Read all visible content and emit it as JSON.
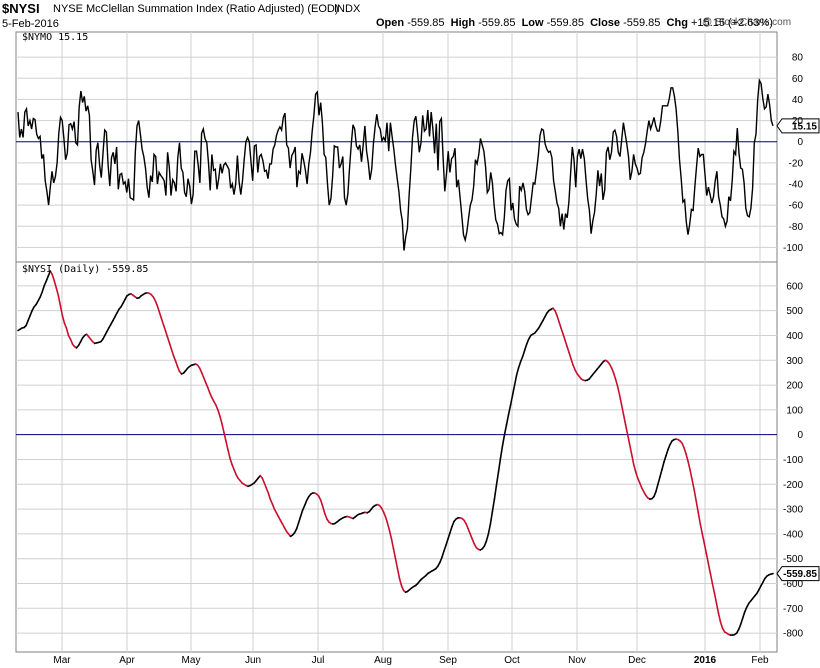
{
  "header": {
    "symbol": "$NYSI",
    "name": "NYSE McClellan Summation Index (Ratio Adjusted) (EOD)",
    "exchange": "INDX",
    "date": "5-Feb-2016",
    "watermark": "@ StockCharts.com",
    "quote": {
      "open_label": "Open",
      "open": "-559.85",
      "high_label": "High",
      "high": "-559.85",
      "low_label": "Low",
      "low": "-559.85",
      "close_label": "Close",
      "close": "-559.85",
      "chg_label": "Chg",
      "chg": "+15.15 (+2.63%)"
    }
  },
  "colors": {
    "line": "#000000",
    "down": "#c8102e",
    "zero": "#000080",
    "grid": "#d0d0d0",
    "border": "#808080"
  },
  "chart_data": [
    {
      "type": "line",
      "panel": "top",
      "label": "$NYMO 15.15",
      "last_value_tag": "15.15",
      "x_axis": "trading days, Feb 2016 end",
      "ylim": [
        -110,
        100
      ],
      "y_ticks": [
        80,
        60,
        40,
        20,
        0,
        -20,
        -40,
        -60,
        -80,
        -100
      ],
      "zero_line": true,
      "values": [
        28,
        4,
        12,
        4,
        28,
        31,
        15,
        20,
        12,
        22,
        21,
        7,
        3,
        5,
        -16,
        -12,
        -37,
        -47,
        -60,
        -43,
        -28,
        -39,
        -33,
        -20,
        8,
        23,
        20,
        3,
        -17,
        -11,
        16,
        17,
        12,
        19,
        -1,
        -3,
        33,
        48,
        37,
        43,
        29,
        34,
        25,
        -17,
        -28,
        -41,
        -8,
        -1,
        -22,
        -34,
        -11,
        11,
        9,
        -22,
        -42,
        -15,
        -10,
        -21,
        -5,
        -45,
        -31,
        -30,
        -40,
        -38,
        -48,
        -35,
        -53,
        -54,
        -55,
        -10,
        15,
        20,
        7,
        -7,
        -14,
        -25,
        -43,
        -53,
        -32,
        -38,
        -12,
        -14,
        -40,
        -29,
        -32,
        -34,
        -37,
        -51,
        -10,
        -24,
        -51,
        -36,
        -39,
        -47,
        -15,
        -1,
        -25,
        -29,
        -48,
        -52,
        -35,
        -42,
        -59,
        -50,
        -9,
        -9,
        -22,
        -39,
        8,
        12,
        3,
        -1,
        -20,
        -46,
        -12,
        -27,
        -26,
        -45,
        -35,
        -21,
        -30,
        -22,
        -20,
        -23,
        -26,
        -44,
        -40,
        -50,
        -40,
        -13,
        -38,
        -50,
        -37,
        -17,
        0,
        4,
        0,
        -19,
        -37,
        -4,
        -3,
        -29,
        -14,
        -12,
        -18,
        -28,
        -27,
        -35,
        -21,
        -21,
        -7,
        -3,
        6,
        11,
        14,
        11,
        23,
        27,
        -3,
        -6,
        -25,
        -13,
        -10,
        -5,
        -43,
        -28,
        -30,
        -11,
        -18,
        -27,
        -40,
        -21,
        -10,
        10,
        25,
        45,
        47,
        25,
        37,
        18,
        -12,
        -15,
        -40,
        -60,
        -54,
        -33,
        -4,
        -5,
        -5,
        -25,
        -21,
        -14,
        -53,
        -60,
        -49,
        -24,
        -2,
        16,
        12,
        -4,
        -7,
        -3,
        -19,
        -3,
        15,
        -9,
        -20,
        -36,
        -26,
        -2,
        14,
        26,
        15,
        12,
        1,
        4,
        1,
        18,
        -9,
        18,
        5,
        -7,
        -22,
        -35,
        -47,
        -65,
        -75,
        -103,
        -90,
        -82,
        -51,
        -26,
        4,
        20,
        24,
        8,
        -10,
        -1,
        25,
        10,
        12,
        30,
        5,
        28,
        12,
        -11,
        17,
        -27,
        19,
        22,
        -15,
        -47,
        -30,
        -9,
        -29,
        -16,
        -14,
        -6,
        -43,
        -36,
        -53,
        -70,
        -88,
        -93,
        -85,
        -72,
        -60,
        -55,
        -42,
        -17,
        -21,
        -12,
        3,
        -3,
        -9,
        -24,
        -48,
        -45,
        -29,
        -39,
        -60,
        -74,
        -78,
        -87,
        -86,
        -88,
        -72,
        -46,
        -37,
        -35,
        -65,
        -58,
        -73,
        -78,
        -80,
        -42,
        -46,
        -39,
        -47,
        -64,
        -69,
        -67,
        -53,
        -39,
        -40,
        -27,
        -13,
        6,
        12,
        11,
        -2,
        -7,
        -10,
        -9,
        -15,
        -37,
        -47,
        -58,
        -63,
        -80,
        -68,
        -83,
        -68,
        -72,
        -57,
        -30,
        -5,
        -17,
        -43,
        -14,
        -7,
        -16,
        -7,
        -16,
        -36,
        -54,
        -65,
        -87,
        -75,
        -67,
        -50,
        -27,
        -42,
        -30,
        -55,
        -46,
        -10,
        -5,
        -17,
        -10,
        9,
        11,
        5,
        -10,
        -14,
        2,
        18,
        8,
        -2,
        -14,
        -36,
        -28,
        -12,
        -21,
        -25,
        -31,
        -30,
        -15,
        -10,
        -2,
        10,
        20,
        12,
        17,
        23,
        15,
        10,
        10,
        20,
        34,
        34,
        34,
        34,
        41,
        51,
        51,
        43,
        31,
        10,
        -17,
        -35,
        -57,
        -55,
        -76,
        -88,
        -78,
        -64,
        -65,
        -43,
        -24,
        -6,
        -14,
        -12,
        -12,
        -31,
        -51,
        -43,
        -50,
        -58,
        -52,
        -37,
        -28,
        -52,
        -60,
        -71,
        -73,
        -80,
        -75,
        -52,
        -56,
        -37,
        -9,
        -12,
        13,
        -11,
        -25,
        -26,
        -39,
        -63,
        -70,
        -71,
        -63,
        -44,
        -1,
        7,
        40,
        58,
        55,
        41,
        31,
        33,
        45,
        35,
        20,
        15
      ],
      "values_note_omitted": true
    },
    {
      "type": "line",
      "panel": "bottom",
      "label": "$NYSI (Daily) -559.85",
      "last_value_tag": "-559.85",
      "ylim": [
        -860,
        680
      ],
      "y_ticks": [
        600,
        500,
        400,
        300,
        200,
        100,
        0,
        -100,
        -200,
        -300,
        -400,
        -500,
        -600,
        -700,
        -800
      ],
      "zero_line": true,
      "values": [
        420,
        425,
        430,
        432,
        440,
        460,
        480,
        500,
        515,
        525,
        540,
        555,
        575,
        600,
        620,
        640,
        660,
        645,
        620,
        590,
        560,
        520,
        480,
        450,
        430,
        400,
        385,
        365,
        355,
        350,
        360,
        375,
        390,
        400,
        405,
        395,
        385,
        375,
        368,
        370,
        372,
        375,
        385,
        400,
        415,
        430,
        445,
        460,
        475,
        490,
        505,
        515,
        530,
        545,
        560,
        565,
        568,
        562,
        556,
        550,
        552,
        560,
        565,
        570,
        572,
        570,
        565,
        555,
        540,
        520,
        495,
        470,
        445,
        420,
        395,
        370,
        345,
        320,
        298,
        275,
        255,
        245,
        248,
        258,
        268,
        275,
        280,
        282,
        285,
        280,
        268,
        250,
        230,
        210,
        190,
        168,
        150,
        135,
        120,
        100,
        75,
        45,
        10,
        -25,
        -60,
        -95,
        -120,
        -140,
        -160,
        -175,
        -185,
        -195,
        -200,
        -205,
        -208,
        -205,
        -200,
        -195,
        -185,
        -175,
        -165,
        -175,
        -195,
        -215,
        -235,
        -260,
        -280,
        -300,
        -315,
        -330,
        -345,
        -360,
        -375,
        -390,
        -400,
        -410,
        -405,
        -395,
        -380,
        -355,
        -330,
        -305,
        -285,
        -265,
        -250,
        -240,
        -235,
        -235,
        -240,
        -248,
        -265,
        -290,
        -318,
        -340,
        -352,
        -358,
        -360,
        -358,
        -352,
        -345,
        -340,
        -335,
        -332,
        -330,
        -332,
        -335,
        -338,
        -332,
        -325,
        -320,
        -318,
        -315,
        -313,
        -315,
        -310,
        -300,
        -290,
        -285,
        -282,
        -285,
        -295,
        -310,
        -330,
        -355,
        -385,
        -420,
        -460,
        -500,
        -540,
        -580,
        -610,
        -628,
        -635,
        -632,
        -625,
        -618,
        -612,
        -608,
        -600,
        -590,
        -582,
        -575,
        -568,
        -560,
        -555,
        -550,
        -545,
        -540,
        -530,
        -515,
        -495,
        -470,
        -445,
        -420,
        -395,
        -370,
        -350,
        -340,
        -335,
        -335,
        -338,
        -345,
        -360,
        -380,
        -400,
        -420,
        -440,
        -455,
        -462,
        -465,
        -460,
        -450,
        -430,
        -400,
        -360,
        -310,
        -260,
        -205,
        -150,
        -95,
        -45,
        0,
        40,
        80,
        120,
        160,
        200,
        240,
        270,
        295,
        315,
        340,
        365,
        385,
        400,
        405,
        410,
        420,
        430,
        445,
        460,
        475,
        490,
        500,
        505,
        510,
        500,
        480,
        455,
        430,
        405,
        380,
        355,
        330,
        305,
        280,
        260,
        245,
        235,
        225,
        220,
        218,
        220,
        225,
        235,
        245,
        255,
        265,
        275,
        285,
        295,
        300,
        295,
        285,
        270,
        250,
        225,
        195,
        160,
        120,
        80,
        40,
        0,
        -40,
        -80,
        -120,
        -150,
        -175,
        -195,
        -215,
        -230,
        -245,
        -255,
        -260,
        -258,
        -250,
        -230,
        -200,
        -170,
        -140,
        -110,
        -85,
        -60,
        -40,
        -25,
        -20,
        -18,
        -20,
        -25,
        -35,
        -55,
        -80,
        -110,
        -145,
        -185,
        -225,
        -270,
        -315,
        -360,
        -400,
        -440,
        -480,
        -520,
        -560,
        -600,
        -640,
        -680,
        -720,
        -755,
        -780,
        -795,
        -800,
        -805,
        -808,
        -808,
        -806,
        -800,
        -785,
        -765,
        -740,
        -715,
        -695,
        -680,
        -670,
        -660,
        -650,
        -640,
        -625,
        -610,
        -595,
        -580,
        -570,
        -565,
        -562,
        -560
      ]
    }
  ],
  "x_axis": {
    "labels": [
      "Mar",
      "Apr",
      "May",
      "Jun",
      "Jul",
      "Aug",
      "Sep",
      "Oct",
      "Nov",
      "Dec",
      "2016",
      "Feb"
    ]
  }
}
